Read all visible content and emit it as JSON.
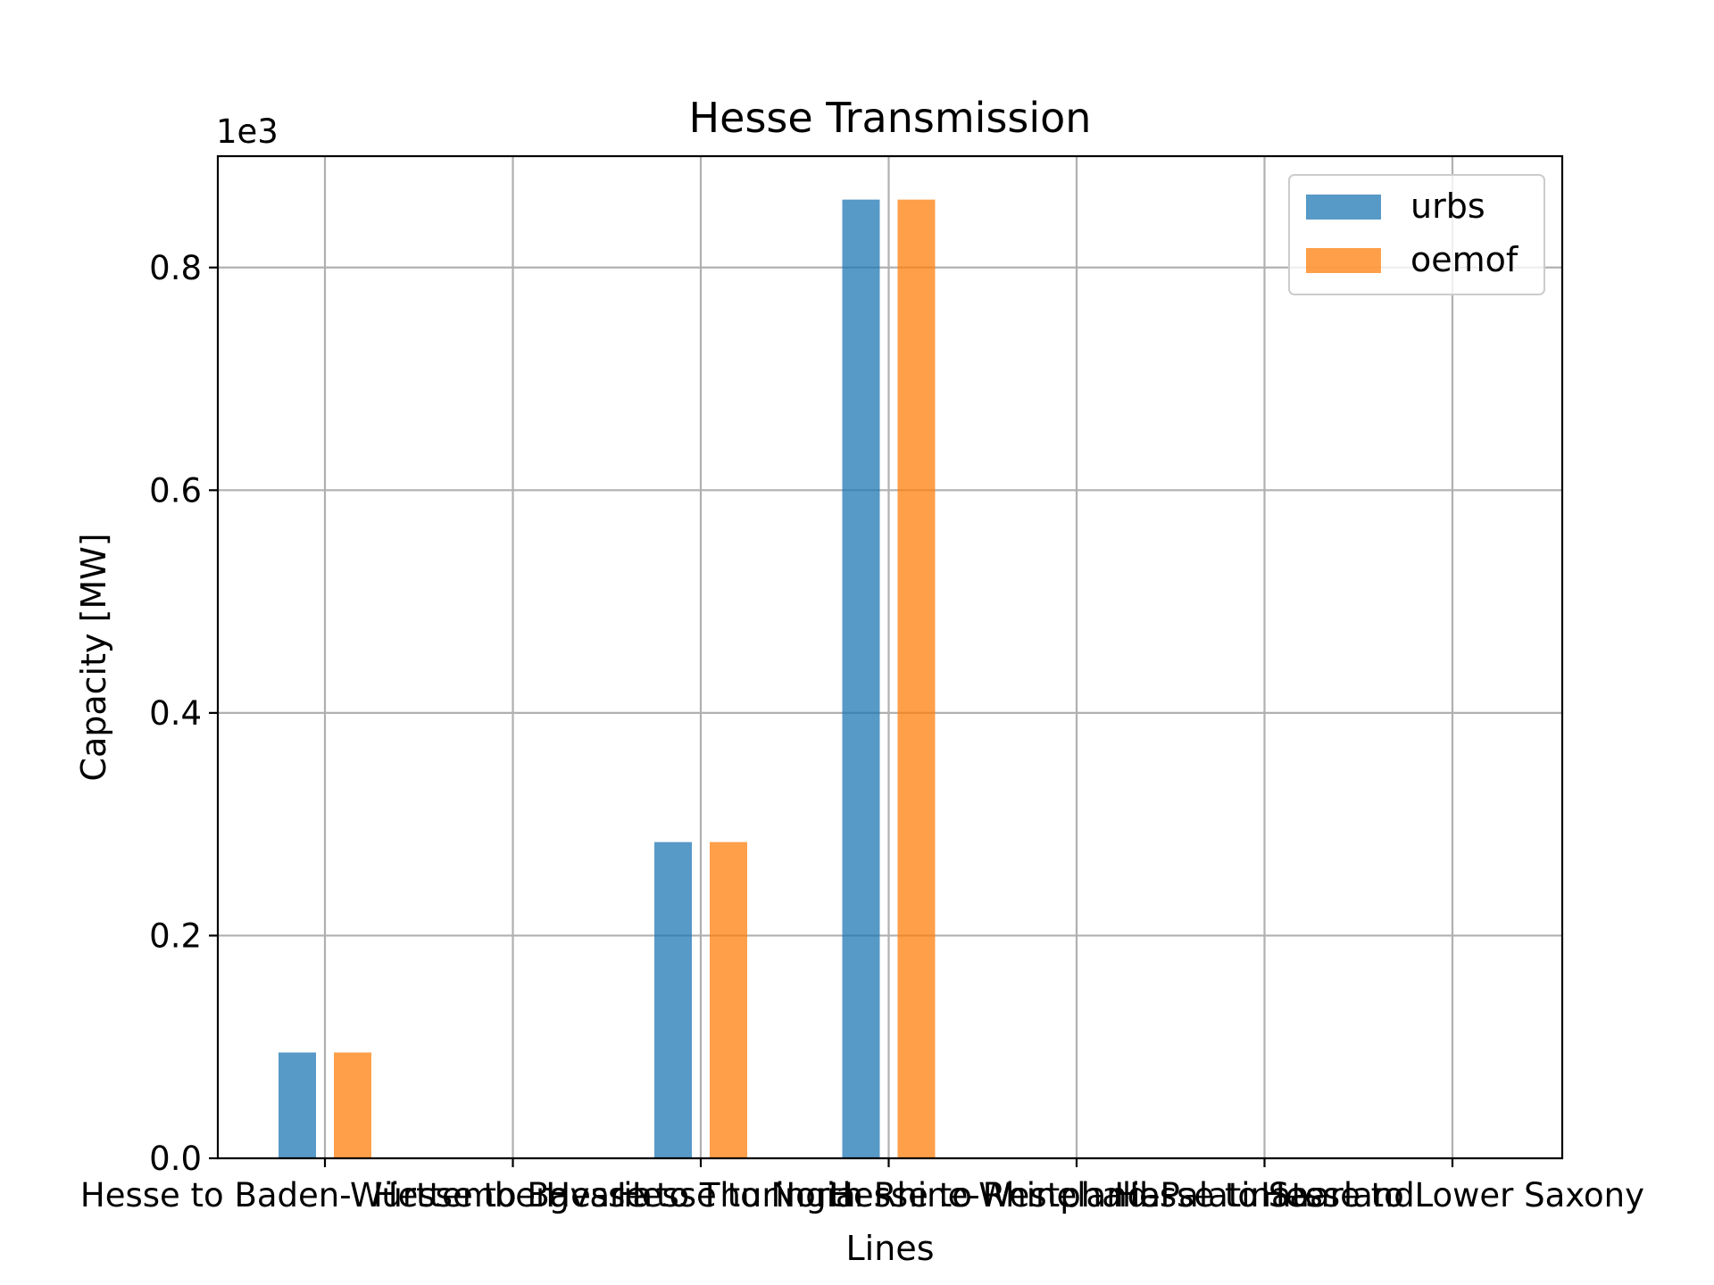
{
  "chart_data": {
    "type": "bar",
    "title": "Hesse Transmission",
    "xlabel": "Lines",
    "ylabel": "Capacity [MW]",
    "y_offset_label": "1e3",
    "categories": [
      "Hesse to Baden-Württemberg",
      "Hesse to Bavaria",
      "Hesse to Thuringia",
      "Hesse to North Rhine-Westphalia",
      "Hesse to Rhineland-Palatinate",
      "Hesse to Saarland",
      "Hesse to Lower Saxony"
    ],
    "series": [
      {
        "name": "urbs",
        "color": "#1f77b4",
        "values": [
          95,
          0,
          284,
          861,
          0,
          0,
          0
        ]
      },
      {
        "name": "oemof",
        "color": "#ff7f0e",
        "values": [
          95,
          0,
          284,
          861,
          0,
          0,
          0
        ]
      }
    ],
    "ylim": [
      0,
      900
    ],
    "yticks": [
      0,
      200,
      400,
      600,
      800
    ],
    "ytick_labels": [
      "0.0",
      "0.2",
      "0.4",
      "0.6",
      "0.8"
    ],
    "grid": true,
    "legend_position": "top-right",
    "bar_alpha": 0.75
  }
}
